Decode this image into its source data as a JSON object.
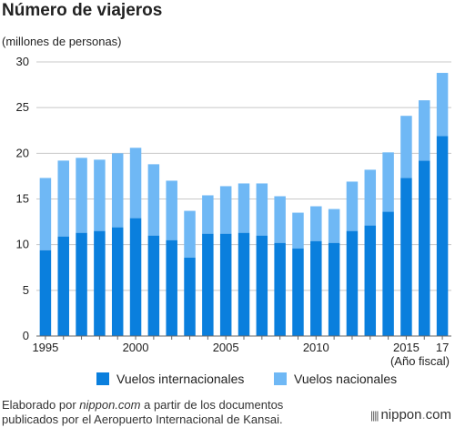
{
  "header": {
    "title": "Número de viajeros",
    "unit": "(millones de personas)",
    "fiscal_note": "(Año fiscal)"
  },
  "legend": {
    "international": "Vuelos internacionales",
    "domestic": "Vuelos nacionales"
  },
  "source": {
    "prefix": "Elaborado por ",
    "site": "nippon.com",
    "suffix": " a partir de los documentos publicados por el Aeropuerto Internacional de Kansai."
  },
  "brand": {
    "name": "nippon",
    "dot": ".",
    "tld": "com"
  },
  "colors": {
    "international": "#0a7fdd",
    "domestic": "#6fb8f5",
    "grid": "#c8c8c8",
    "axis": "#666666"
  },
  "chart_data": {
    "type": "bar",
    "stacked": true,
    "title": "Número de viajeros",
    "ylabel": "(millones de personas)",
    "xlabel": "(Año fiscal)",
    "ylim": [
      0,
      30
    ],
    "yticks": [
      0,
      5,
      10,
      15,
      20,
      25,
      30
    ],
    "grid": true,
    "legend": "bottom",
    "categories": [
      1995,
      1996,
      1997,
      1998,
      1999,
      2000,
      2001,
      2002,
      2003,
      2004,
      2005,
      2006,
      2007,
      2008,
      2009,
      2010,
      2011,
      2012,
      2013,
      2014,
      2015,
      2016,
      2017
    ],
    "xtick_labels": {
      "1995": "1995",
      "2000": "2000",
      "2005": "2005",
      "2010": "2010",
      "2015": "2015",
      "2017": "17"
    },
    "series": [
      {
        "name": "Vuelos internacionales",
        "values": [
          9.4,
          10.9,
          11.3,
          11.5,
          11.9,
          12.9,
          11.0,
          10.5,
          8.6,
          11.2,
          11.2,
          11.3,
          11.0,
          10.2,
          9.6,
          10.4,
          10.2,
          11.5,
          12.1,
          13.6,
          17.3,
          19.2,
          21.9
        ]
      },
      {
        "name": "Vuelos nacionales",
        "values": [
          7.9,
          8.3,
          8.2,
          7.8,
          8.1,
          7.7,
          7.8,
          6.5,
          5.1,
          4.2,
          5.2,
          5.4,
          5.7,
          5.1,
          3.9,
          3.8,
          3.7,
          5.4,
          6.1,
          6.5,
          6.8,
          6.6,
          6.9
        ]
      }
    ]
  }
}
